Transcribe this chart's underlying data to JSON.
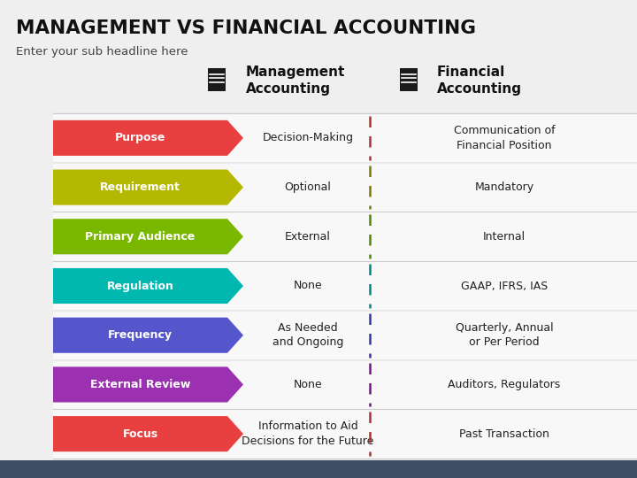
{
  "title": "MANAGEMENT VS FINANCIAL ACCOUNTING",
  "subtitle": "Enter your sub headline here",
  "bg_color": "#efefef",
  "footer_color": "#3d4f65",
  "rows": [
    {
      "label": "Purpose",
      "color": "#e84040",
      "mgmt": "Decision-Making",
      "fin": "Communication of\nFinancial Position",
      "divider_color": "#b03030"
    },
    {
      "label": "Requirement",
      "color": "#b5b800",
      "mgmt": "Optional",
      "fin": "Mandatory",
      "divider_color": "#7a7a00"
    },
    {
      "label": "Primary Audience",
      "color": "#7ab800",
      "mgmt": "External",
      "fin": "Internal",
      "divider_color": "#4a8a00"
    },
    {
      "label": "Regulation",
      "color": "#00b8b0",
      "mgmt": "None",
      "fin": "GAAP, IFRS, IAS",
      "divider_color": "#008888"
    },
    {
      "label": "Frequency",
      "color": "#5555cc",
      "mgmt": "As Needed\nand Ongoing",
      "fin": "Quarterly, Annual\nor Per Period",
      "divider_color": "#3333aa"
    },
    {
      "label": "External Review",
      "color": "#9b30b0",
      "mgmt": "None",
      "fin": "Auditors, Regulators",
      "divider_color": "#7a1090"
    },
    {
      "label": "Focus",
      "color": "#e84040",
      "mgmt": "Information to Aid\nDecisions for the Future",
      "fin": "Past Transaction",
      "divider_color": "#b03030"
    }
  ],
  "col_header_mgmt": "Management\nAccounting",
  "col_header_fin": "Financial\nAccounting"
}
